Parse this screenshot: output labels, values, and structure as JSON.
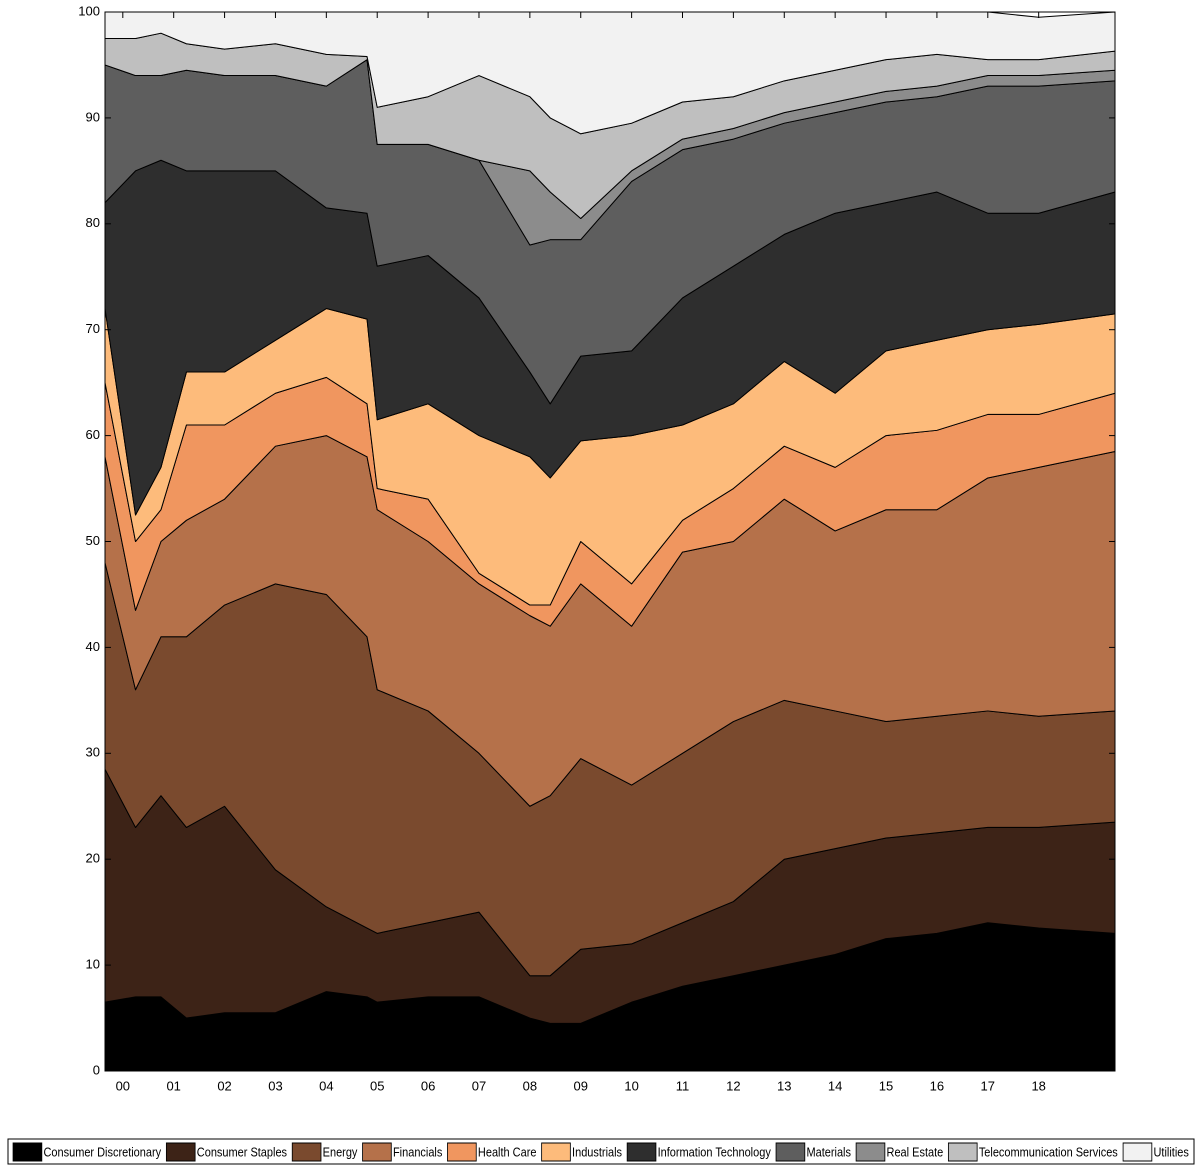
{
  "chart_data": {
    "type": "stacked-area",
    "x": [
      1999.65,
      2000.25,
      2000.75,
      2001.25,
      2002.0,
      2003.0,
      2004.0,
      2004.8,
      2005.0,
      2006.0,
      2007.0,
      2008.0,
      2008.4,
      2009.0,
      2010.0,
      2011.0,
      2012.0,
      2013.0,
      2014.0,
      2015.0,
      2016.0,
      2017.0,
      2018.0,
      2019.5
    ],
    "xlim": [
      1999.65,
      2019.5
    ],
    "xticks": [
      {
        "value": 2000,
        "label": "00"
      },
      {
        "value": 2001,
        "label": "01"
      },
      {
        "value": 2002,
        "label": "02"
      },
      {
        "value": 2003,
        "label": "03"
      },
      {
        "value": 2004,
        "label": "04"
      },
      {
        "value": 2005,
        "label": "05"
      },
      {
        "value": 2006,
        "label": "06"
      },
      {
        "value": 2007,
        "label": "07"
      },
      {
        "value": 2008,
        "label": "08"
      },
      {
        "value": 2009,
        "label": "09"
      },
      {
        "value": 2010,
        "label": "10"
      },
      {
        "value": 2011,
        "label": "11"
      },
      {
        "value": 2012,
        "label": "12"
      },
      {
        "value": 2013,
        "label": "13"
      },
      {
        "value": 2014,
        "label": "14"
      },
      {
        "value": 2015,
        "label": "15"
      },
      {
        "value": 2016,
        "label": "16"
      },
      {
        "value": 2017,
        "label": "17"
      },
      {
        "value": 2018,
        "label": "18"
      }
    ],
    "ylim": [
      0,
      100
    ],
    "yticks": [
      0,
      10,
      20,
      30,
      40,
      50,
      60,
      70,
      80,
      90,
      100
    ],
    "series": [
      {
        "name": "Consumer Discretionary",
        "color": "#000000",
        "values": [
          6.5,
          7,
          7,
          5,
          5.5,
          5.5,
          7.5,
          7,
          6.5,
          7,
          7,
          5,
          4.5,
          4.5,
          6.5,
          8,
          9,
          10,
          11,
          12.5,
          13,
          14,
          13.5,
          13
        ]
      },
      {
        "name": "Consumer Staples",
        "color": "#3d2317",
        "values": [
          22,
          16,
          19,
          18,
          19.5,
          13.5,
          8,
          6.5,
          6.5,
          7,
          8,
          4,
          4.5,
          7,
          5.5,
          6,
          7,
          10,
          10,
          9.5,
          9.5,
          9,
          9.5,
          10.5
        ]
      },
      {
        "name": "Energy",
        "color": "#7a4a2e",
        "values": [
          19.5,
          13,
          15,
          18,
          19,
          27,
          29.5,
          27.5,
          23,
          20,
          15,
          16,
          17,
          18,
          15,
          16,
          17,
          15,
          13,
          11,
          11,
          11,
          10.5,
          10.5
        ]
      },
      {
        "name": "Financials",
        "color": "#b5714a",
        "values": [
          10,
          7.5,
          9,
          11,
          10,
          13,
          15,
          17,
          17,
          16,
          16,
          18,
          16,
          16.5,
          15,
          19,
          17,
          19,
          17,
          20,
          19.5,
          22,
          23.5,
          24.5
        ]
      },
      {
        "name": "Health Care",
        "color": "#f0965f",
        "values": [
          7,
          6.5,
          3,
          9,
          7,
          5,
          5.5,
          5,
          2,
          4,
          1,
          1,
          2,
          4,
          4,
          3,
          5,
          5,
          6,
          7,
          7.5,
          6,
          5,
          5.5
        ]
      },
      {
        "name": "Industrials",
        "color": "#fdbb7b",
        "values": [
          7,
          2.5,
          4,
          5,
          5,
          5,
          6.5,
          8,
          6.5,
          9,
          13,
          14,
          12,
          9.5,
          14,
          9,
          8,
          8,
          7,
          8,
          8.5,
          8,
          8.5,
          7.5
        ]
      },
      {
        "name": "Information Technology",
        "color": "#2e2e2e",
        "values": [
          10,
          32.5,
          29,
          19,
          19,
          16,
          9.5,
          10,
          14.5,
          14,
          13,
          8,
          7,
          8,
          8,
          12,
          13,
          12,
          17,
          14,
          14,
          11,
          10.5,
          11.5
        ]
      },
      {
        "name": "Materials",
        "color": "#5e5e5e",
        "values": [
          13,
          9,
          8,
          9.5,
          9,
          9,
          11.5,
          14.5,
          11.5,
          10.5,
          13,
          12,
          15.5,
          11,
          16,
          14,
          12,
          10.5,
          9.5,
          9.5,
          9,
          12,
          12,
          10.5
        ]
      },
      {
        "name": "Real Estate",
        "color": "#8c8c8c",
        "values": [
          0,
          0,
          0,
          0,
          0,
          0,
          0,
          0,
          0,
          0,
          0,
          7,
          4.5,
          2,
          1,
          1,
          1,
          1,
          1,
          1,
          1,
          1,
          1,
          1
        ]
      },
      {
        "name": "Telecommunication Services",
        "color": "#bfbfbf",
        "values": [
          2.5,
          3.5,
          4,
          2.5,
          2.5,
          3,
          3,
          0.3,
          3.5,
          4.5,
          8,
          7,
          7,
          8,
          4.5,
          3.5,
          3,
          3,
          3,
          3,
          3,
          1.5,
          1.5,
          1.8
        ]
      },
      {
        "name": "Utilities",
        "color": "#f2f2f2",
        "values": [
          2.5,
          2.5,
          2,
          3,
          3.5,
          3,
          4,
          4.2,
          9,
          8,
          6,
          8,
          10,
          11.5,
          10.5,
          8.5,
          8,
          6.5,
          5.5,
          4.5,
          4,
          4.5,
          4,
          3.7
        ]
      }
    ]
  }
}
